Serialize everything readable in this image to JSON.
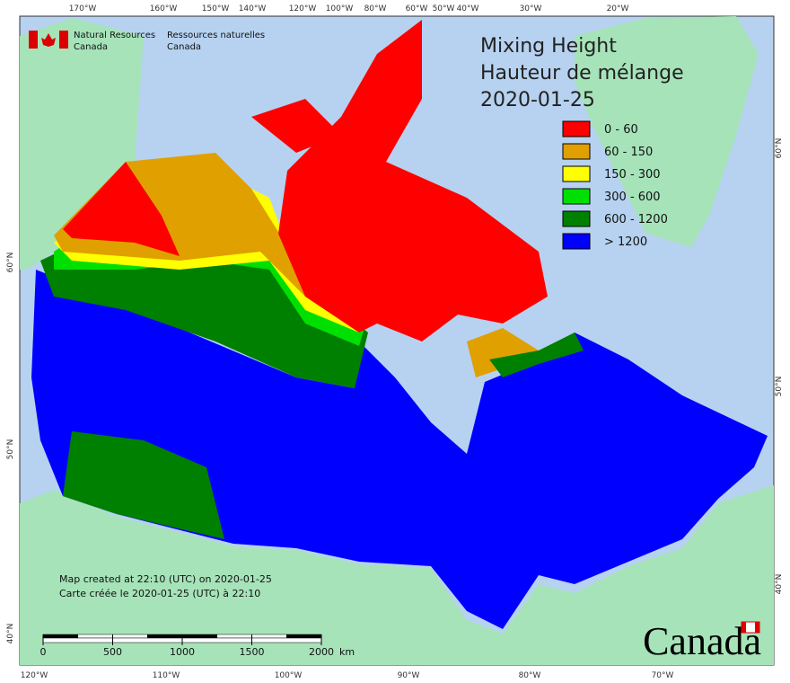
{
  "agency": {
    "en": [
      "Natural Resources",
      "Canada"
    ],
    "fr": [
      "Ressources naturelles",
      "Canada"
    ]
  },
  "title": [
    "Mixing Height",
    "Hauteur de mélange",
    "2020-01-25"
  ],
  "legend": [
    {
      "label": "0 - 60",
      "color": "#ff0000"
    },
    {
      "label": "60 - 150",
      "color": "#e0a000"
    },
    {
      "label": "150 - 300",
      "color": "#ffff00"
    },
    {
      "label": "300 - 600",
      "color": "#00e000"
    },
    {
      "label": "600 - 1200",
      "color": "#008000"
    },
    {
      "label": "> 1200",
      "color": "#0000ff"
    }
  ],
  "graticule": {
    "top": [
      "170°W",
      "160°W",
      "150°W",
      "140°W",
      "120°W",
      "100°W",
      "80°W",
      "60°W",
      "50°W",
      "40°W",
      "30°W",
      "20°W"
    ],
    "bottom": [
      "120°W",
      "110°W",
      "100°W",
      "90°W",
      "80°W",
      "70°W"
    ],
    "left": [
      "60°N",
      "50°N",
      "40°N"
    ],
    "right": [
      "60°N",
      "50°N",
      "40°N"
    ]
  },
  "notes": [
    "Map created at 22:10 (UTC) on 2020-01-25",
    "Carte créée le 2020-01-25 (UTC) à 22:10"
  ],
  "scale": {
    "ticks": [
      0,
      500,
      1000,
      1500,
      2000
    ],
    "unit": "km"
  },
  "wordmark": "Canada"
}
